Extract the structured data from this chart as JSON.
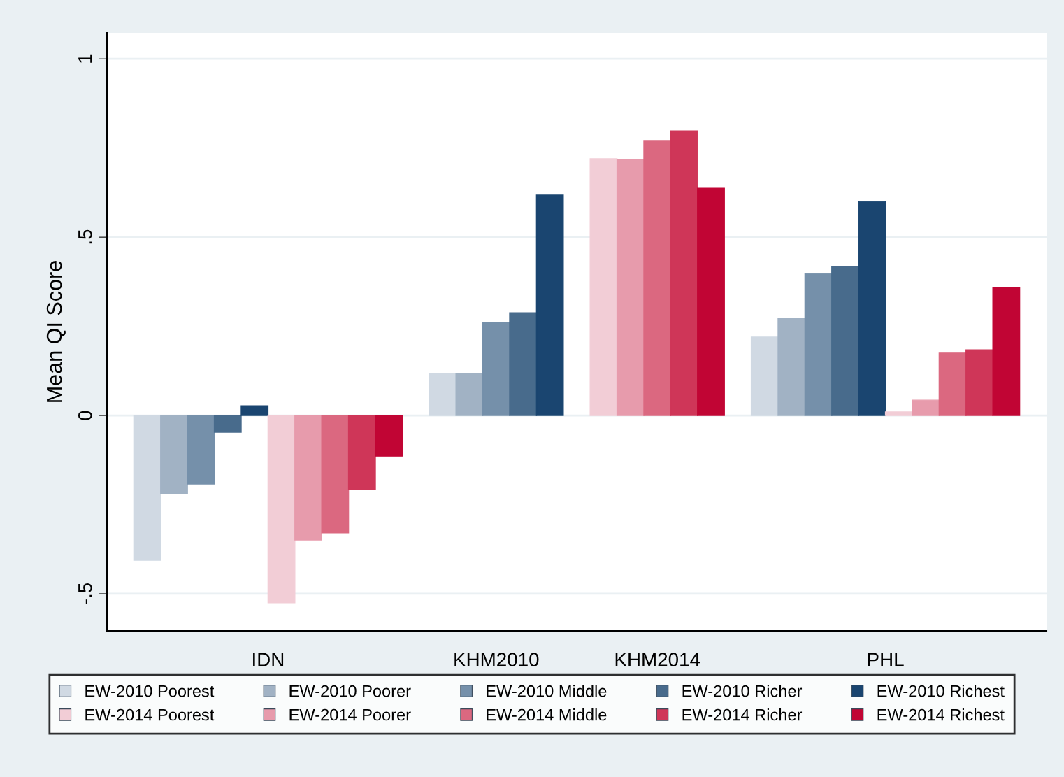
{
  "chart_data": {
    "type": "bar",
    "ylabel": "Mean QI Score",
    "categories": [
      null,
      null,
      null,
      null,
      null,
      null,
      null,
      null,
      null,
      null,
      null,
      null,
      null,
      null,
      null,
      null,
      null,
      null,
      null,
      null,
      null,
      null,
      null,
      null,
      null,
      null,
      null,
      null,
      null,
      null,
      null,
      null,
      null,
      null,
      null
    ],
    "annotations": [
      "IDN",
      "KHM2010",
      "KHM2014",
      "PHL"
    ],
    "series": [
      {
        "name": "EW-2010 Poorest",
        "color": "#d0d9e3",
        "values": [
          null,
          -0.406,
          null,
          null,
          null,
          null,
          null,
          null,
          null,
          null,
          null,
          null,
          0.118,
          null,
          null,
          null,
          null,
          null,
          null,
          null,
          null,
          null,
          null,
          null,
          0.22,
          null,
          null,
          null,
          null,
          null,
          null,
          null,
          null,
          null,
          null
        ]
      },
      {
        "name": "EW-2010 Poorer",
        "color": "#a1b2c4",
        "values": [
          null,
          null,
          -0.218,
          null,
          null,
          null,
          null,
          null,
          null,
          null,
          null,
          null,
          null,
          0.118,
          null,
          null,
          null,
          null,
          null,
          null,
          null,
          null,
          null,
          null,
          null,
          0.273,
          null,
          null,
          null,
          null,
          null,
          null,
          null,
          null,
          null
        ]
      },
      {
        "name": "EW-2010 Middle",
        "color": "#7590aa",
        "values": [
          null,
          null,
          null,
          -0.192,
          null,
          null,
          null,
          null,
          null,
          null,
          null,
          null,
          null,
          null,
          0.261,
          null,
          null,
          null,
          null,
          null,
          null,
          null,
          null,
          null,
          null,
          null,
          0.398,
          null,
          null,
          null,
          null,
          null,
          null,
          null,
          null
        ]
      },
      {
        "name": "EW-2010 Richer",
        "color": "#486b8c",
        "values": [
          null,
          null,
          null,
          null,
          -0.047,
          null,
          null,
          null,
          null,
          null,
          null,
          null,
          null,
          null,
          null,
          0.288,
          null,
          null,
          null,
          null,
          null,
          null,
          null,
          null,
          null,
          null,
          null,
          0.418,
          null,
          null,
          null,
          null,
          null,
          null,
          null
        ]
      },
      {
        "name": "EW-2010 Richest",
        "color": "#1a4570",
        "values": [
          null,
          null,
          null,
          null,
          null,
          0.027,
          null,
          null,
          null,
          null,
          null,
          null,
          null,
          null,
          null,
          null,
          0.618,
          null,
          null,
          null,
          null,
          null,
          null,
          null,
          null,
          null,
          null,
          null,
          0.6,
          null,
          null,
          null,
          null,
          null,
          null
        ]
      },
      {
        "name": "EW-2014 Poorest",
        "color": "#f2cdd6",
        "values": [
          null,
          null,
          null,
          null,
          null,
          null,
          -0.525,
          null,
          null,
          null,
          null,
          null,
          null,
          null,
          null,
          null,
          null,
          null,
          0.72,
          null,
          null,
          null,
          null,
          null,
          null,
          null,
          null,
          null,
          null,
          0.01,
          null,
          null,
          null,
          null,
          null
        ]
      },
      {
        "name": "EW-2014 Poorer",
        "color": "#e79bac",
        "values": [
          null,
          null,
          null,
          null,
          null,
          null,
          null,
          -0.349,
          null,
          null,
          null,
          null,
          null,
          null,
          null,
          null,
          null,
          null,
          null,
          0.718,
          null,
          null,
          null,
          null,
          null,
          null,
          null,
          null,
          null,
          null,
          0.043,
          null,
          null,
          null,
          null
        ]
      },
      {
        "name": "EW-2014 Middle",
        "color": "#db6880",
        "values": [
          null,
          null,
          null,
          null,
          null,
          null,
          null,
          null,
          -0.329,
          null,
          null,
          null,
          null,
          null,
          null,
          null,
          null,
          null,
          null,
          null,
          0.771,
          null,
          null,
          null,
          null,
          null,
          null,
          null,
          null,
          null,
          null,
          0.175,
          null,
          null,
          null
        ]
      },
      {
        "name": "EW-2014 Richer",
        "color": "#cf3658",
        "values": [
          null,
          null,
          null,
          null,
          null,
          null,
          null,
          null,
          null,
          -0.208,
          null,
          null,
          null,
          null,
          null,
          null,
          null,
          null,
          null,
          null,
          null,
          0.798,
          null,
          null,
          null,
          null,
          null,
          null,
          null,
          null,
          null,
          null,
          0.184,
          null,
          null
        ]
      },
      {
        "name": "EW-2014 Richest",
        "color": "#c10534",
        "values": [
          null,
          null,
          null,
          null,
          null,
          null,
          null,
          null,
          null,
          null,
          -0.114,
          null,
          null,
          null,
          null,
          null,
          null,
          null,
          null,
          null,
          null,
          null,
          0.637,
          null,
          null,
          null,
          null,
          null,
          null,
          null,
          null,
          null,
          null,
          0.359,
          null
        ]
      }
    ],
    "ylim": [
      -0.604,
      1.073
    ],
    "yticks": [
      {
        "value": -0.5,
        "label": "-.5"
      },
      0,
      {
        "value": 0.5,
        "label": ".5"
      },
      1
    ],
    "grid": "y",
    "legend": "bottom",
    "stacked": true
  }
}
